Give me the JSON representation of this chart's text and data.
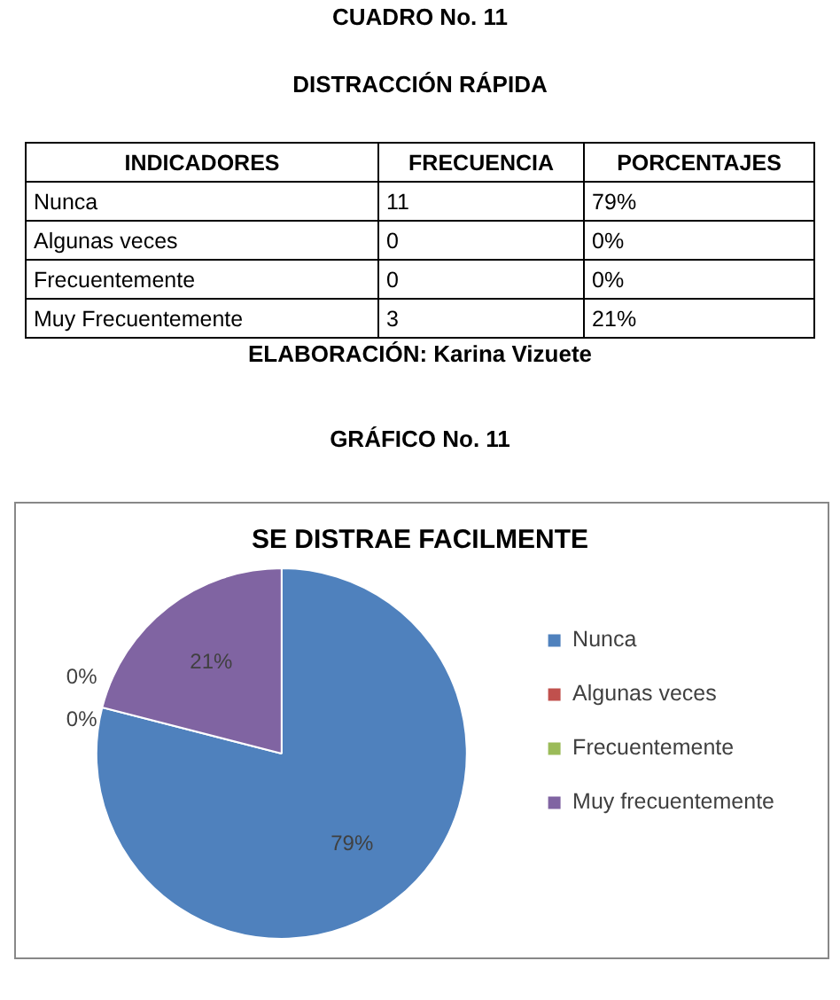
{
  "chart_data": [
    {
      "type": "other",
      "title": "DISTRACCIÓN RÁPIDA",
      "xlabel": "INDICADORES",
      "annotations": [
        "CUADRO No. 11",
        "ELABORACIÓN: Karina Vizuete",
        "GRÁFICO No. 11"
      ],
      "categories": [
        "Nunca",
        "Algunas veces",
        "Frecuentemente",
        "Muy Frecuentemente"
      ],
      "series": [
        {
          "name": "FRECUENCIA",
          "values": [
            11,
            0,
            0,
            3
          ],
          "value_labels": [
            "11",
            "0",
            "0",
            "3"
          ]
        },
        {
          "name": "PORCENTAJES",
          "values": [
            79,
            0,
            0,
            21
          ],
          "value_labels": [
            "79%",
            "0%",
            "0%",
            "21%"
          ]
        }
      ]
    },
    {
      "type": "pie",
      "title": "SE DISTRAE FACILMENTE",
      "legend": "right",
      "categories": [
        "Nunca",
        "Algunas veces",
        "Frecuentemente",
        "Muy frecuentemente"
      ],
      "values": [
        79,
        0,
        0,
        21
      ],
      "colors": [
        "#4f81bd",
        "#c0504d",
        "#9bbb59",
        "#8064a2"
      ],
      "value_labels": [
        "79%",
        "0%",
        "0%",
        "21%"
      ]
    }
  ]
}
